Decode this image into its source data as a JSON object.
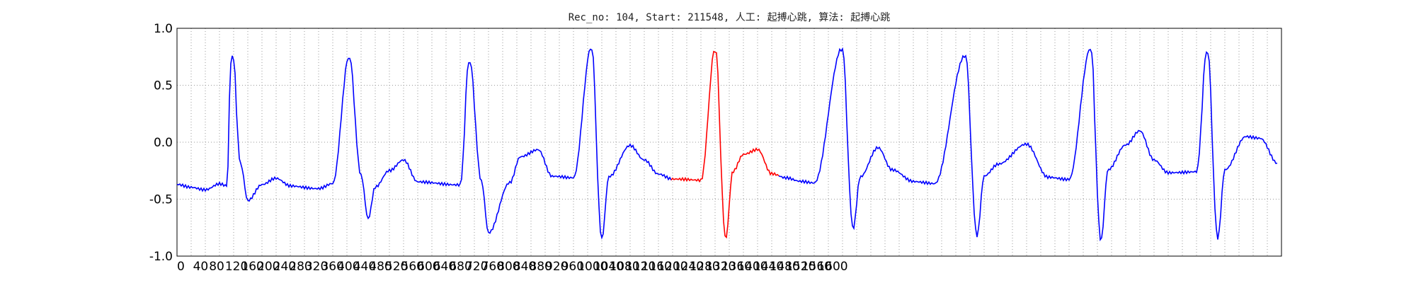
{
  "chart_data": {
    "type": "line",
    "title": "Rec_no: 104, Start: 211548, 人工: 起搏心跳, 算法: 起搏心跳",
    "xlabel": "",
    "ylabel": "",
    "xlim": [
      0,
      1560
    ],
    "ylim": [
      -1.0,
      1.0
    ],
    "grid": true,
    "y_ticks": [
      1.0,
      0.5,
      0.0,
      -0.5,
      -1.0
    ],
    "y_tick_labels": [
      "1.0",
      "0.5",
      "0.0",
      "-0.5",
      "-1.0"
    ],
    "x_tick_step": 20,
    "x_tick_labels": [
      "0",
      "40",
      "80",
      "120",
      "160",
      "200",
      "240",
      "280",
      "320",
      "360",
      "400",
      "440",
      "480",
      "520",
      "560",
      "600",
      "640",
      "680",
      "720",
      "760",
      "800",
      "840",
      "880",
      "920",
      "960",
      "1000",
      "1040",
      "1080",
      "1120",
      "1160",
      "1200",
      "1240",
      "1280",
      "1320",
      "1360",
      "1400",
      "1440",
      "1480",
      "1520",
      "1560",
      "1600"
    ],
    "colors": {
      "signal": "#0000ff",
      "highlight": "#ff0000",
      "grid": "#999999"
    },
    "beat_times": [
      78,
      243,
      413,
      585,
      760,
      939,
      1113,
      1290,
      1455
    ],
    "highlight_range": [
      700,
      850
    ],
    "series": [
      {
        "x": [
          0,
          20,
          40,
          60,
          70,
          78,
          90,
          100,
          120,
          140,
          160,
          200,
          220,
          243,
          260,
          270,
          280,
          300,
          320,
          340,
          400,
          413,
          430,
          440,
          470,
          485,
          510,
          530,
          560,
          585,
          600,
          610,
          640,
          660,
          680,
          700,
          740,
          760,
          775,
          785,
          800,
          820,
          840,
          860,
          880,
          900,
          939,
          955,
          965,
          990,
          1010,
          1040,
          1070,
          1113,
          1130,
          1140,
          1160,
          1200,
          1230,
          1260,
          1290,
          1305,
          1315,
          1340,
          1360,
          1380,
          1400,
          1440,
          1455,
          1470,
          1480,
          1510,
          1530,
          1555
        ],
        "y": [
          -0.37,
          -0.39,
          -0.41,
          -0.36,
          -0.38,
          0.75,
          -0.2,
          -0.52,
          -0.38,
          -0.32,
          -0.38,
          -0.4,
          -0.36,
          0.73,
          -0.3,
          -0.68,
          -0.4,
          -0.25,
          -0.15,
          -0.34,
          -0.38,
          0.69,
          -0.35,
          -0.8,
          -0.35,
          -0.12,
          -0.06,
          -0.3,
          -0.32,
          0.81,
          -0.85,
          -0.3,
          -0.02,
          -0.15,
          -0.28,
          -0.33,
          -0.34,
          0.8,
          -0.84,
          -0.25,
          -0.1,
          -0.06,
          -0.28,
          -0.32,
          -0.35,
          -0.36,
          0.82,
          -0.75,
          -0.3,
          -0.05,
          -0.25,
          -0.35,
          -0.36,
          0.76,
          -0.82,
          -0.3,
          -0.2,
          -0.02,
          -0.3,
          -0.32,
          0.81,
          -0.87,
          -0.25,
          -0.03,
          0.1,
          -0.15,
          -0.26,
          -0.26,
          0.78,
          -0.85,
          -0.25,
          0.05,
          0.04,
          -0.18
        ]
      }
    ]
  }
}
